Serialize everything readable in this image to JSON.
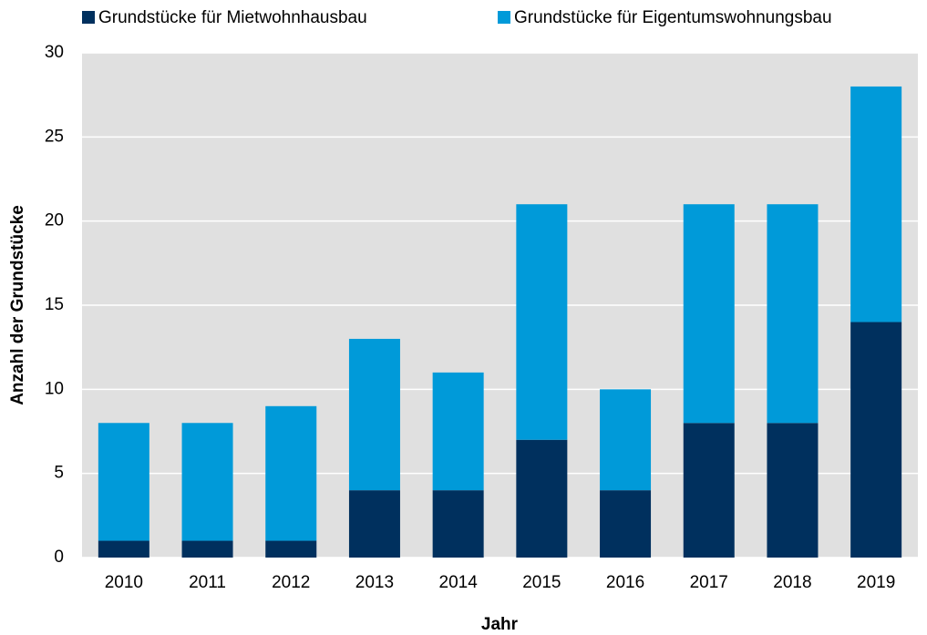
{
  "chart_data": {
    "type": "stacked_bar",
    "xlabel": "Jahr",
    "ylabel": "Anzahl der Grundstücke",
    "categories": [
      "2010",
      "2011",
      "2012",
      "2013",
      "2014",
      "2015",
      "2016",
      "2017",
      "2018",
      "2019"
    ],
    "series": [
      {
        "name": "Grundstücke für Mietwohnhausbau",
        "color": "#00305e",
        "values": [
          1,
          1,
          1,
          4,
          4,
          7,
          4,
          8,
          8,
          14
        ]
      },
      {
        "name": "Grundstücke für Eigentumswohnungsbau",
        "color": "#009ad9",
        "values": [
          7,
          7,
          8,
          9,
          7,
          14,
          6,
          13,
          13,
          14
        ]
      }
    ],
    "ylim": [
      0,
      30
    ],
    "yticks": [
      0,
      5,
      10,
      15,
      20,
      25,
      30
    ],
    "grid": true
  }
}
